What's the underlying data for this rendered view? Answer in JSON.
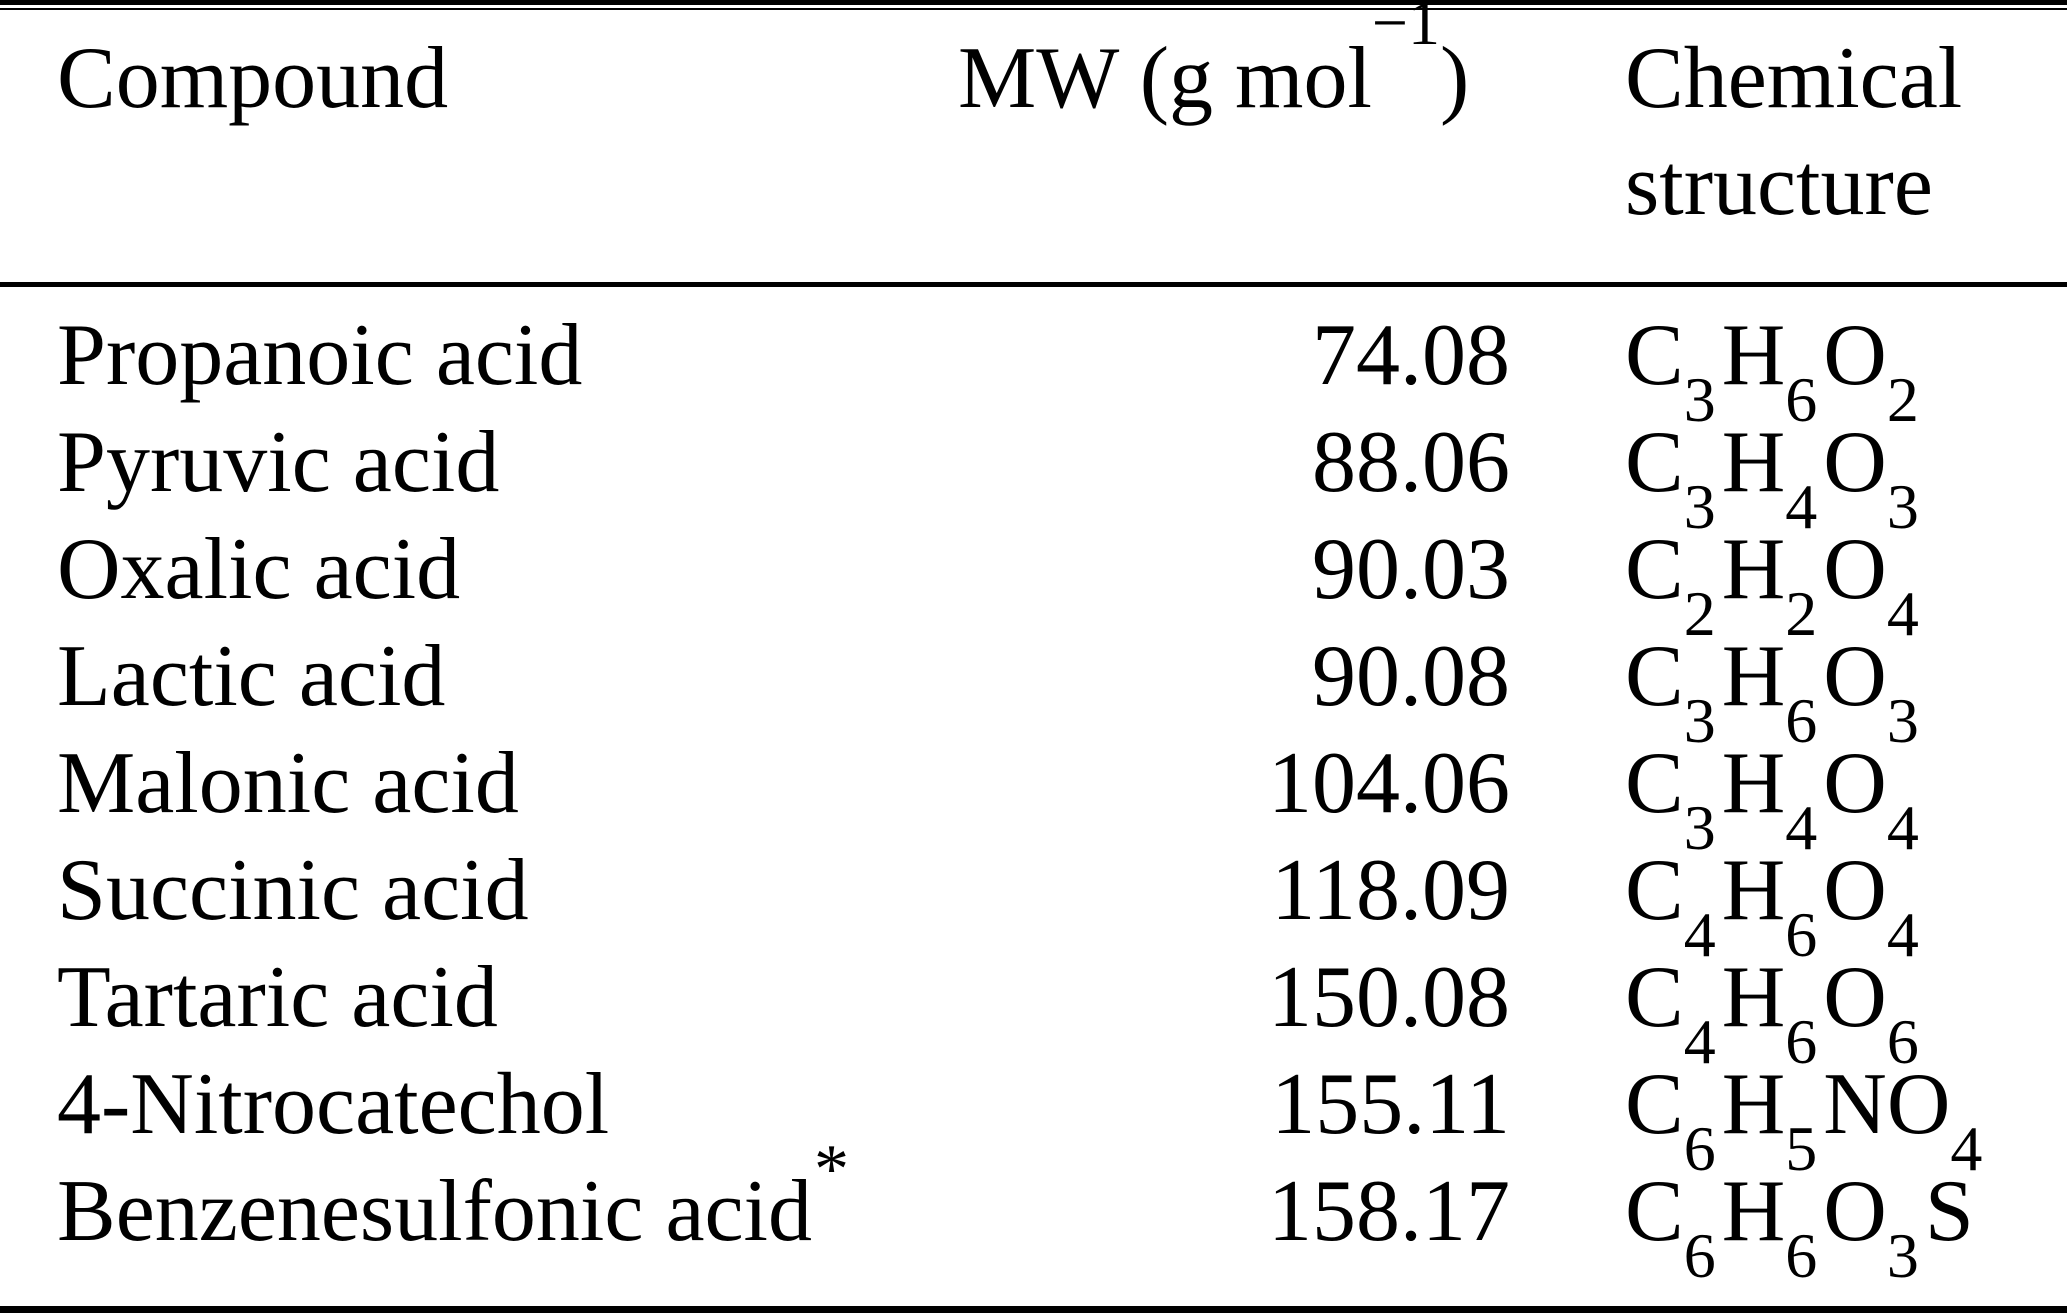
{
  "colors": {
    "background": "#ffffff",
    "text": "#000000",
    "rule": "#000000"
  },
  "table": {
    "columns": [
      {
        "label": "Compound"
      },
      {
        "label_prefix": "MW (g mol",
        "label_sup": "−1",
        "label_suffix": ")"
      },
      {
        "label_line1": "Chemical",
        "label_line2": "structure"
      }
    ],
    "rows": [
      {
        "compound": "Propanoic acid",
        "mw": "74.08",
        "formula": "C3H6O2"
      },
      {
        "compound": "Pyruvic acid",
        "mw": "88.06",
        "formula": "C3H4O3"
      },
      {
        "compound": "Oxalic acid",
        "mw": "90.03",
        "formula": "C2H2O4"
      },
      {
        "compound": "Lactic acid",
        "mw": "90.08",
        "formula": "C3H6O3"
      },
      {
        "compound": "Malonic acid",
        "mw": "104.06",
        "formula": "C3H4O4"
      },
      {
        "compound": "Succinic acid",
        "mw": "118.09",
        "formula": "C4H6O4"
      },
      {
        "compound": "Tartaric acid",
        "mw": "150.08",
        "formula": "C4H6O6"
      },
      {
        "compound": "4-Nitrocatechol",
        "mw": "155.11",
        "formula": "C6H5NO4"
      },
      {
        "compound": "Benzenesulfonic acid*",
        "mw": "158.17",
        "formula": "C6H6O3S"
      }
    ]
  }
}
